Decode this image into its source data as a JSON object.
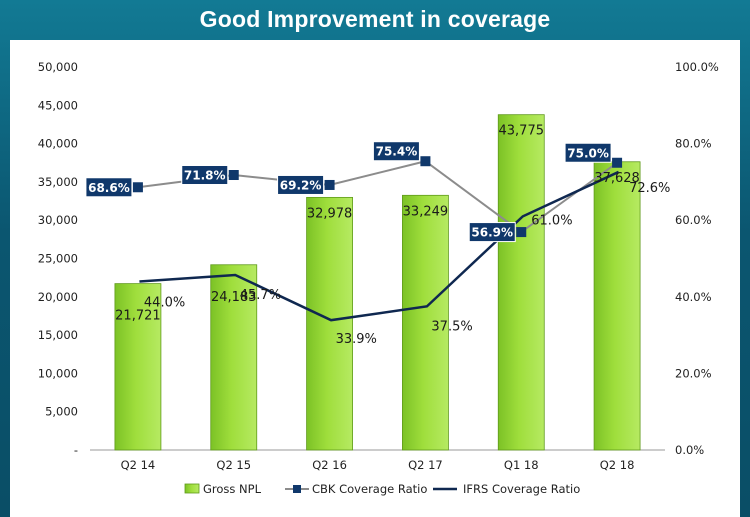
{
  "chart_data": {
    "type": "bar",
    "title": "Good Improvement in coverage",
    "categories": [
      "Q2 14",
      "Q2 15",
      "Q2 16",
      "Q2 17",
      "Q1 18",
      "Q2 18"
    ],
    "series": [
      {
        "name": "Gross NPL",
        "kind": "bar",
        "axis": "left",
        "values": [
          21721,
          24183,
          32978,
          33249,
          43775,
          37628
        ],
        "labels": [
          "21,721",
          "24,183",
          "32,978",
          "33,249",
          "43,775",
          "37,628"
        ]
      },
      {
        "name": "CBK Coverage Ratio",
        "kind": "line",
        "axis": "right",
        "values": [
          68.6,
          71.8,
          69.2,
          75.4,
          56.9,
          75.0
        ],
        "labels": [
          "68.6%",
          "71.8%",
          "69.2%",
          "75.4%",
          "56.9%",
          "75.0%"
        ]
      },
      {
        "name": "IFRS Coverage Ratio",
        "kind": "line",
        "axis": "right",
        "values": [
          44.0,
          45.7,
          33.9,
          37.5,
          61.0,
          72.6
        ],
        "labels": [
          "44.0%",
          "45.7%",
          "33.9%",
          "37.5%",
          "61.0%",
          "72.6%"
        ]
      }
    ],
    "y_left": {
      "min": 0,
      "max": 50000,
      "ticks": [
        "-",
        "5,000",
        "10,000",
        "15,000",
        "20,000",
        "25,000",
        "30,000",
        "35,000",
        "40,000",
        "45,000",
        "50,000"
      ]
    },
    "y_right": {
      "min": 0,
      "max": 100,
      "ticks": [
        "0.0%",
        "20.0%",
        "40.0%",
        "60.0%",
        "80.0%",
        "100.0%"
      ]
    },
    "legend_position": "bottom",
    "grid": false,
    "colors": {
      "bar": "#9fde3c",
      "bar_edge": "#5f9a1a",
      "cbk_line": "#8c8c8c",
      "cbk_marker": "#10386b",
      "ifrs_line": "#0f2850",
      "label_box": "#10386b",
      "title_bg": "#0b5670"
    }
  }
}
